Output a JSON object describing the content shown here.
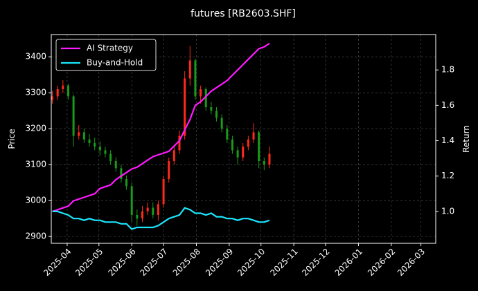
{
  "chart_data": {
    "type": "candlestick",
    "title": "futures [RB2603.SHF]",
    "y_label": "Price",
    "y2_label": "Return",
    "x": [
      "2025-03-18",
      "2025-03-23",
      "2025-03-28",
      "2025-04-02",
      "2025-04-07",
      "2025-04-12",
      "2025-04-17",
      "2025-04-22",
      "2025-04-27",
      "2025-05-02",
      "2025-05-07",
      "2025-05-12",
      "2025-05-17",
      "2025-05-22",
      "2025-05-27",
      "2025-06-01",
      "2025-06-06",
      "2025-06-11",
      "2025-06-16",
      "2025-06-21",
      "2025-06-26",
      "2025-07-01",
      "2025-07-06",
      "2025-07-11",
      "2025-07-16",
      "2025-07-21",
      "2025-07-26",
      "2025-07-31",
      "2025-08-05",
      "2025-08-10",
      "2025-08-15",
      "2025-08-20",
      "2025-08-25",
      "2025-08-30",
      "2025-09-04",
      "2025-09-09",
      "2025-09-14",
      "2025-09-19",
      "2025-09-24",
      "2025-09-29",
      "2025-10-04",
      "2025-10-09"
    ],
    "open": [
      3280,
      3290,
      3310,
      3320,
      3290,
      3180,
      3190,
      3170,
      3160,
      3150,
      3140,
      3130,
      3110,
      3090,
      3060,
      3040,
      2960,
      2950,
      2970,
      2980,
      2960,
      2990,
      3060,
      3110,
      3140,
      3180,
      3340,
      3390,
      3290,
      3310,
      3260,
      3250,
      3230,
      3200,
      3170,
      3140,
      3120,
      3150,
      3170,
      3190,
      3110,
      3100
    ],
    "high": [
      3305,
      3320,
      3335,
      3325,
      3295,
      3210,
      3200,
      3185,
      3175,
      3165,
      3150,
      3140,
      3120,
      3100,
      3070,
      3050,
      2975,
      2985,
      2995,
      2995,
      3000,
      3070,
      3120,
      3150,
      3195,
      3360,
      3430,
      3395,
      3320,
      3315,
      3275,
      3260,
      3240,
      3210,
      3180,
      3150,
      3160,
      3180,
      3215,
      3195,
      3120,
      3150
    ],
    "low": [
      3270,
      3280,
      3300,
      3280,
      3150,
      3170,
      3160,
      3150,
      3140,
      3125,
      3120,
      3100,
      3080,
      3050,
      3030,
      2940,
      2930,
      2940,
      2960,
      2950,
      2945,
      2980,
      3050,
      3100,
      3130,
      3170,
      3320,
      3280,
      3270,
      3250,
      3240,
      3220,
      3190,
      3160,
      3130,
      3100,
      3110,
      3140,
      3160,
      3090,
      3085,
      3090
    ],
    "close": [
      3290,
      3310,
      3320,
      3290,
      3180,
      3190,
      3170,
      3160,
      3150,
      3140,
      3130,
      3110,
      3090,
      3060,
      3040,
      2960,
      2950,
      2970,
      2980,
      2960,
      2990,
      3060,
      3110,
      3140,
      3180,
      3340,
      3390,
      3290,
      3310,
      3260,
      3250,
      3230,
      3200,
      3170,
      3140,
      3120,
      3150,
      3170,
      3190,
      3110,
      3100,
      3130
    ],
    "up_color": "#ff2a1a",
    "down_color": "#1a9a1a",
    "series": [
      {
        "name": "AI Strategy",
        "color": "#ff1aff",
        "axis": "y2",
        "values": [
          1.0,
          1.01,
          1.02,
          1.03,
          1.06,
          1.07,
          1.08,
          1.09,
          1.1,
          1.13,
          1.14,
          1.15,
          1.18,
          1.2,
          1.22,
          1.24,
          1.25,
          1.27,
          1.29,
          1.31,
          1.32,
          1.33,
          1.34,
          1.37,
          1.4,
          1.46,
          1.52,
          1.6,
          1.62,
          1.65,
          1.68,
          1.7,
          1.72,
          1.74,
          1.77,
          1.8,
          1.83,
          1.86,
          1.89,
          1.92,
          1.93,
          1.95
        ]
      },
      {
        "name": "Buy-and-Hold",
        "color": "#1ae8ff",
        "axis": "y2",
        "values": [
          1.0,
          1.0,
          0.99,
          0.98,
          0.96,
          0.96,
          0.95,
          0.96,
          0.95,
          0.95,
          0.94,
          0.94,
          0.94,
          0.93,
          0.93,
          0.9,
          0.91,
          0.91,
          0.91,
          0.91,
          0.92,
          0.94,
          0.96,
          0.97,
          0.98,
          1.02,
          1.01,
          0.99,
          0.99,
          0.98,
          0.99,
          0.97,
          0.97,
          0.96,
          0.96,
          0.95,
          0.96,
          0.96,
          0.95,
          0.94,
          0.94,
          0.95
        ]
      }
    ],
    "xlim": [
      "2025-03-17",
      "2026-03-15"
    ],
    "xticks": [
      "2025-04",
      "2025-05",
      "2025-06",
      "2025-07",
      "2025-08",
      "2025-09",
      "2025-10",
      "2025-11",
      "2025-12",
      "2026-01",
      "2026-02",
      "2026-03"
    ],
    "ylim": [
      2881,
      3462
    ],
    "yticks": [
      2900,
      3000,
      3100,
      3200,
      3300,
      3400
    ],
    "y2lim": [
      0.82,
      2.0
    ],
    "y2ticks": [
      {
        "value": 1,
        "label": "1.0"
      },
      1.2,
      1.4,
      1.6,
      1.8
    ],
    "grid": true,
    "legend": "upper left"
  }
}
